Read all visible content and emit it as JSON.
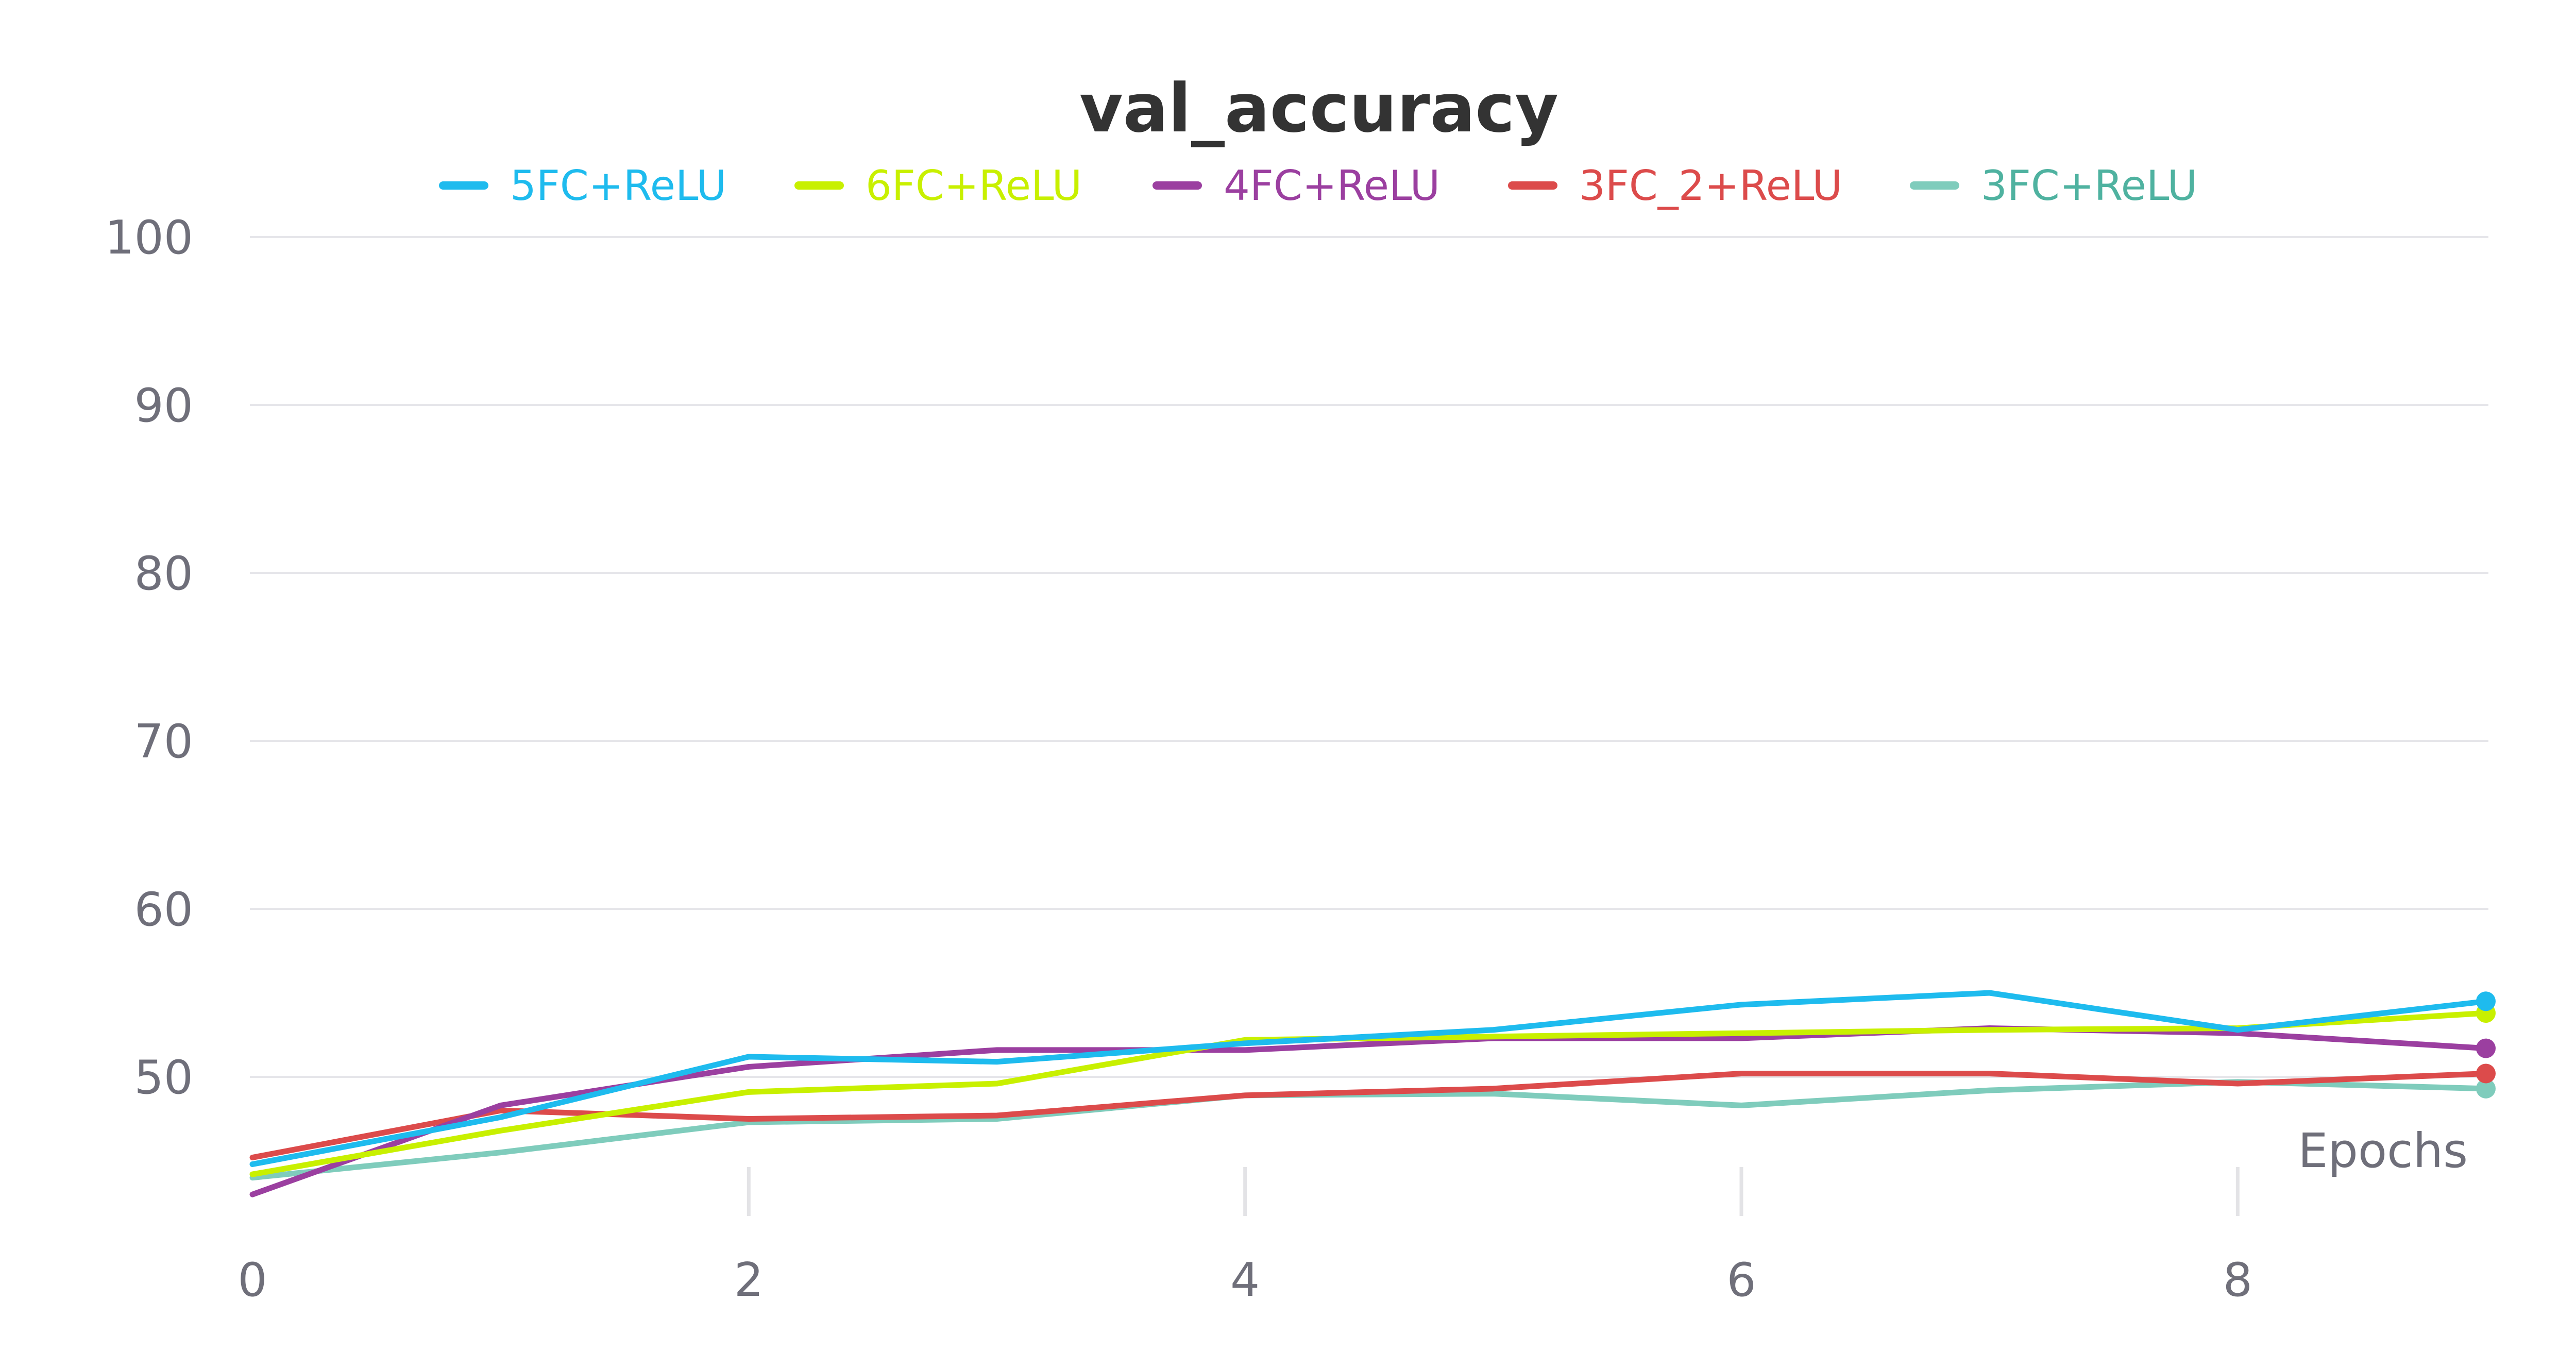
{
  "chart_data": {
    "type": "line",
    "title": "val_accuracy",
    "xlabel": "Epochs",
    "ylabel": "",
    "xlim": [
      0,
      9
    ],
    "ylim": [
      42,
      100
    ],
    "x_ticks": [
      0,
      2,
      4,
      6,
      8
    ],
    "y_ticks": [
      50,
      60,
      70,
      80,
      90,
      100
    ],
    "grid": "horizontal",
    "legend_position": "top-center",
    "x": [
      0,
      1,
      2,
      3,
      4,
      5,
      6,
      7,
      8,
      9
    ],
    "series": [
      {
        "name": "5FC+ReLU",
        "color": "#1ebbee",
        "values": [
          44.8,
          47.6,
          51.2,
          50.9,
          52.0,
          52.8,
          54.3,
          55.0,
          52.8,
          54.5
        ]
      },
      {
        "name": "6FC+ReLU",
        "color": "#c8f000",
        "values": [
          44.2,
          46.8,
          49.1,
          49.6,
          52.2,
          52.4,
          52.6,
          52.8,
          52.9,
          53.8
        ]
      },
      {
        "name": "4FC+ReLU",
        "color": "#9b3fa0",
        "values": [
          43.0,
          48.3,
          50.6,
          51.6,
          51.6,
          52.3,
          52.3,
          52.9,
          52.6,
          51.7
        ]
      },
      {
        "name": "3FC_2+ReLU",
        "color": "#dc4b4b",
        "values": [
          45.2,
          48.0,
          47.5,
          47.7,
          48.9,
          49.3,
          50.2,
          50.2,
          49.6,
          50.2
        ]
      },
      {
        "name": "3FC+ReLU",
        "color": "#7fccbc",
        "values": [
          44.0,
          45.5,
          47.3,
          47.5,
          48.9,
          49.0,
          48.3,
          49.2,
          49.7,
          49.3
        ]
      }
    ]
  }
}
